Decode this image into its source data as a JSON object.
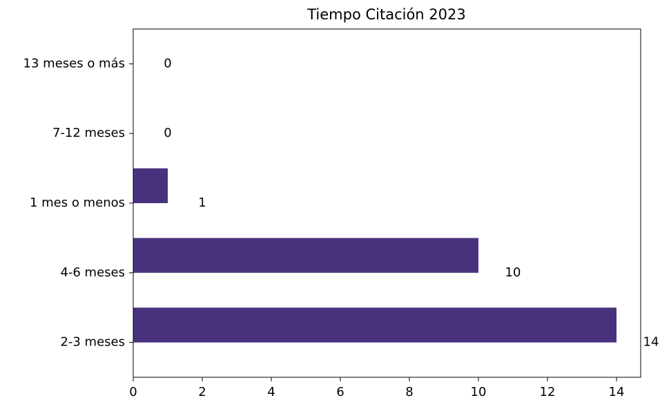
{
  "chart_data": {
    "type": "barh",
    "title": "Tiempo Citación 2023",
    "categories": [
      "2-3 meses",
      "4-6 meses",
      "1 mes o menos",
      "7-12 meses",
      "13 meses o más"
    ],
    "values": [
      14,
      10,
      1,
      0,
      0
    ],
    "color": "#48327e",
    "xlim": [
      0,
      14.7
    ],
    "xticks": [
      0,
      2,
      4,
      6,
      8,
      10,
      12,
      14
    ]
  }
}
